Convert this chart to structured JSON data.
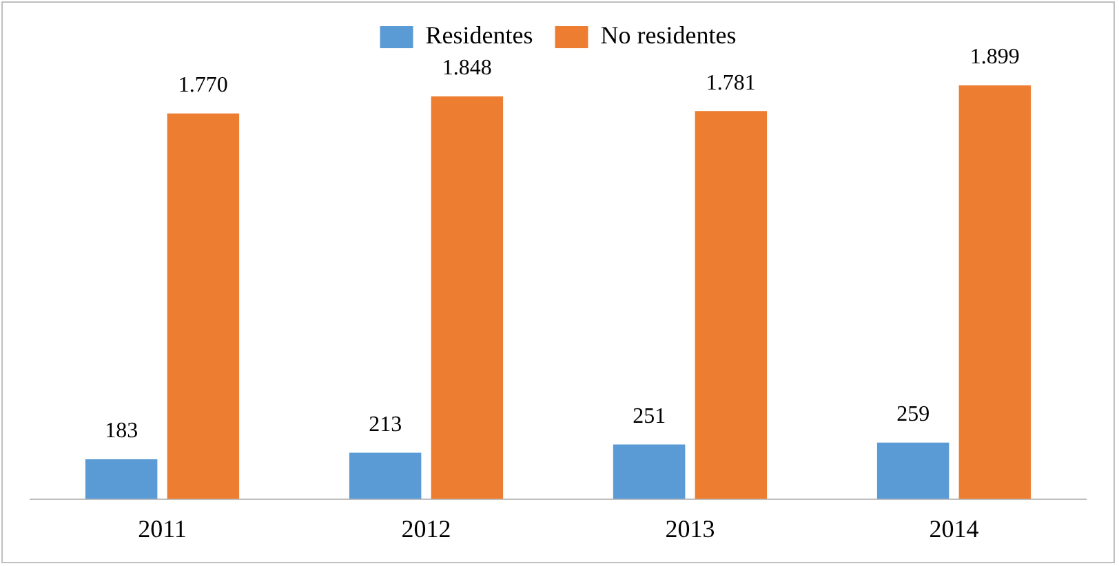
{
  "chart_data": {
    "type": "bar",
    "categories": [
      "2011",
      "2012",
      "2013",
      "2014"
    ],
    "series": [
      {
        "name": "Residentes",
        "color": "#5b9bd5",
        "values": [
          183,
          213,
          251,
          259
        ],
        "value_labels": [
          "183",
          "213",
          "251",
          "259"
        ]
      },
      {
        "name": "No residentes",
        "color": "#ed7d31",
        "values": [
          1770,
          1848,
          1781,
          1899
        ],
        "value_labels": [
          "1.770",
          "1.848",
          "1.781",
          "1.899"
        ]
      }
    ],
    "legend": "top",
    "grid": false,
    "tick_labels": "x"
  }
}
